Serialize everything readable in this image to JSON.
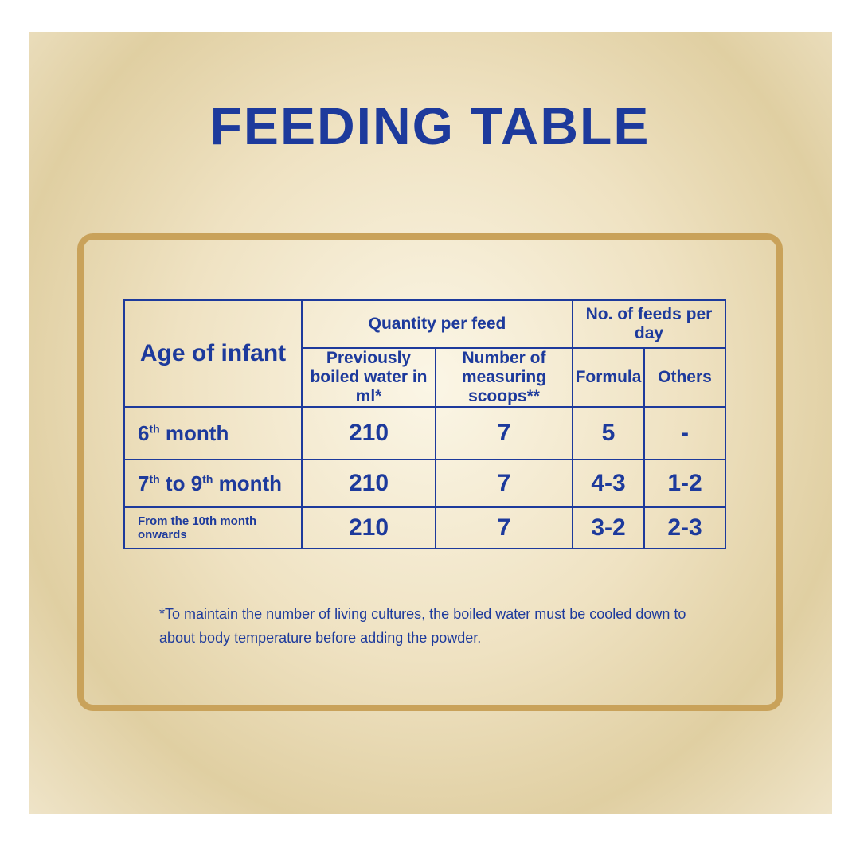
{
  "title": "FEEDING TABLE",
  "table": {
    "header": {
      "age": "Age of infant",
      "quantity": "Quantity per feed",
      "water": "Previously boiled water in ml*",
      "scoops": "Number of measuring scoops**",
      "feeds": "No. of feeds per day",
      "formula": "Formula",
      "others": "Others"
    },
    "rows": [
      {
        "age": {
          "ordinal": "6",
          "suffix": "th",
          "text": "month"
        },
        "water": 210,
        "scoops": 7,
        "formula": "5",
        "others": "-"
      },
      {
        "age": {
          "from": {
            "ordinal": "7",
            "suffix": "th"
          },
          "joiner": "to",
          "to": {
            "ordinal": "9",
            "suffix": "th"
          },
          "text": "month"
        },
        "water": 210,
        "scoops": 7,
        "formula": "4-3",
        "others": "1-2"
      },
      {
        "age": "From the 10th month onwards",
        "water": 210,
        "scoops": 7,
        "formula": "3-2",
        "others": "2-3"
      }
    ]
  },
  "footnote": "*To maintain the number of living cultures, the boiled water must be cooled down to about body temperature before adding the powder."
}
